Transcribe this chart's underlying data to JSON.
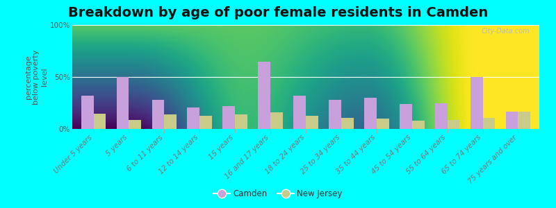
{
  "title": "Breakdown by age of poor female residents in Camden",
  "ylabel": "percentage\nbelow poverty\nlevel",
  "categories": [
    "Under 5 years",
    "5 years",
    "6 to 11 years",
    "12 to 14 years",
    "15 years",
    "16 and 17 years",
    "18 to 24 years",
    "25 to 34 years",
    "35 to 44 years",
    "45 to 54 years",
    "55 to 64 years",
    "65 to 74 years",
    "75 years and over"
  ],
  "camden_values": [
    32,
    50,
    28,
    21,
    22,
    65,
    32,
    28,
    30,
    24,
    25,
    50,
    17
  ],
  "nj_values": [
    15,
    9,
    14,
    13,
    14,
    16,
    13,
    11,
    10,
    8,
    9,
    11,
    17
  ],
  "camden_color": "#c8a0dc",
  "nj_color": "#c8cc88",
  "bg_top": "#f2f2ee",
  "bg_bottom": "#cceedd",
  "outer_bg": "#00ffff",
  "yticks": [
    0,
    50,
    100
  ],
  "ytick_labels": [
    "0%",
    "50%",
    "100%"
  ],
  "ylim": [
    0,
    100
  ],
  "bar_width": 0.35,
  "title_fontsize": 14,
  "axis_label_fontsize": 8,
  "tick_fontsize": 7.5,
  "legend_labels": [
    "Camden",
    "New Jersey"
  ],
  "watermark": "City-Data.com"
}
